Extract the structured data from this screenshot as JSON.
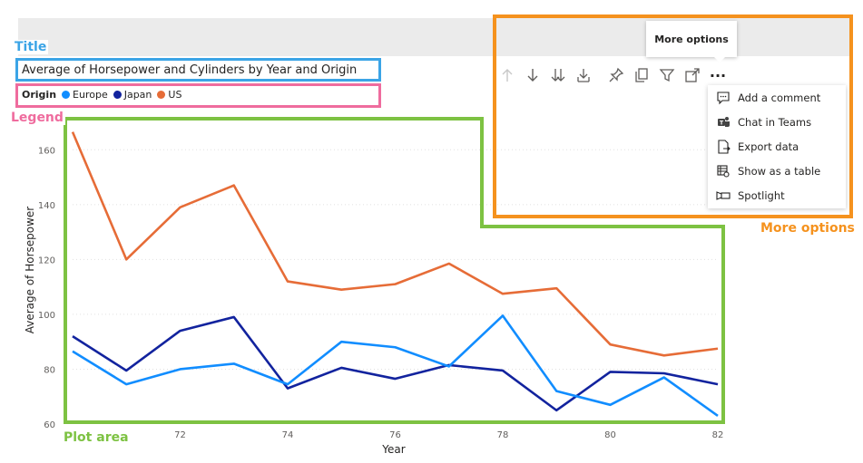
{
  "chart_title": "Average of Horsepower and Cylinders by Year and Origin",
  "legend": {
    "title": "Origin",
    "items": [
      {
        "label": "Europe",
        "color": "#118dff"
      },
      {
        "label": "Japan",
        "color": "#12239e"
      },
      {
        "label": "US",
        "color": "#e66c37"
      }
    ]
  },
  "annotations": {
    "title": "Title",
    "legend": "Legend",
    "plot_area": "Plot area",
    "more_options": "More options"
  },
  "toolbar": {
    "icons": [
      "sort-ascending-icon",
      "sort-descending-icon",
      "expand-all-down-icon",
      "drill-down-icon",
      "pin-icon",
      "copy-icon",
      "filter-icon",
      "focus-mode-icon",
      "more-options-icon"
    ],
    "tooltip": "More options",
    "more_glyph": "···"
  },
  "menu": {
    "items": [
      {
        "label": "Add a comment",
        "icon": "comment-icon"
      },
      {
        "label": "Chat in Teams",
        "icon": "teams-icon"
      },
      {
        "label": "Export data",
        "icon": "export-icon"
      },
      {
        "label": "Show as a table",
        "icon": "table-icon"
      },
      {
        "label": "Spotlight",
        "icon": "spotlight-icon"
      }
    ]
  },
  "chart_data": {
    "type": "line",
    "xlabel": "Year",
    "ylabel": "Average of Horsepower",
    "x": [
      70,
      71,
      72,
      73,
      74,
      75,
      76,
      77,
      78,
      79,
      80,
      81,
      82
    ],
    "x_ticks": [
      72,
      74,
      76,
      78,
      80,
      82
    ],
    "y_ticks": [
      60,
      80,
      100,
      120,
      140,
      160
    ],
    "ylim": [
      60,
      170
    ],
    "xlim": [
      70,
      82
    ],
    "grid": "horizontal-dotted",
    "series": [
      {
        "name": "US",
        "color": "#e66c37",
        "values": [
          166.5,
          120,
          139,
          147,
          112,
          109,
          111,
          118.5,
          107.5,
          109.5,
          89,
          85,
          87.5
        ]
      },
      {
        "name": "Japan",
        "color": "#12239e",
        "values": [
          92,
          79.5,
          94,
          99,
          73,
          80.5,
          76.5,
          81.5,
          79.5,
          65,
          79,
          78.5,
          74.5
        ]
      },
      {
        "name": "Europe",
        "color": "#118dff",
        "values": [
          86.5,
          74.5,
          80,
          82,
          74.5,
          90,
          88,
          81,
          99.5,
          72,
          67,
          77,
          63
        ]
      }
    ]
  }
}
